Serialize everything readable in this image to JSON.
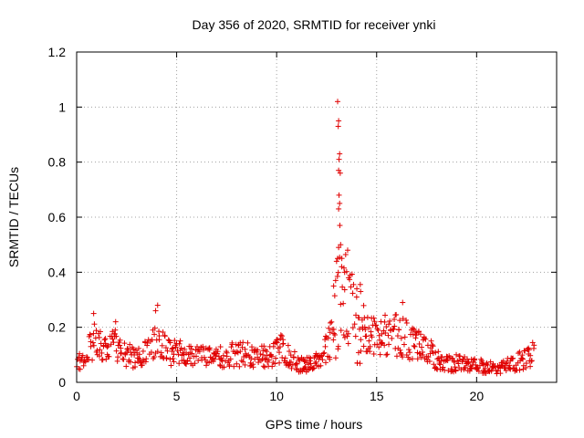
{
  "chart_data": {
    "type": "scatter",
    "title": "Day 356 of 2020, SRMTID for receiver ynki",
    "xlabel": "GPS time / hours",
    "ylabel": "SRMTID / TECUs",
    "xlim": [
      0,
      24
    ],
    "ylim": [
      0,
      1.2
    ],
    "xticks": [
      0,
      5,
      10,
      15,
      20
    ],
    "yticks": [
      0,
      0.2,
      0.4,
      0.6,
      0.8,
      1.0,
      1.2
    ],
    "ytick_labels": [
      "0",
      "0.2",
      "0.4",
      "0.6",
      "0.8",
      "1",
      "1.2"
    ],
    "grid": true,
    "marker": "+",
    "color": "#e00000",
    "series": [
      {
        "name": "SRMTID",
        "envelope": [
          {
            "x": 0.0,
            "y": 0.07
          },
          {
            "x": 0.5,
            "y": 0.09
          },
          {
            "x": 0.9,
            "y": 0.17
          },
          {
            "x": 1.3,
            "y": 0.11
          },
          {
            "x": 2.0,
            "y": 0.14
          },
          {
            "x": 2.5,
            "y": 0.1
          },
          {
            "x": 3.2,
            "y": 0.09
          },
          {
            "x": 4.0,
            "y": 0.16
          },
          {
            "x": 4.5,
            "y": 0.11
          },
          {
            "x": 5.5,
            "y": 0.11
          },
          {
            "x": 6.5,
            "y": 0.09
          },
          {
            "x": 7.5,
            "y": 0.1
          },
          {
            "x": 8.5,
            "y": 0.1
          },
          {
            "x": 9.5,
            "y": 0.09
          },
          {
            "x": 10.2,
            "y": 0.12
          },
          {
            "x": 11.0,
            "y": 0.07
          },
          {
            "x": 11.8,
            "y": 0.06
          },
          {
            "x": 12.3,
            "y": 0.1
          },
          {
            "x": 12.7,
            "y": 0.16
          },
          {
            "x": 13.0,
            "y": 0.28
          },
          {
            "x": 13.3,
            "y": 0.3
          },
          {
            "x": 13.7,
            "y": 0.25
          },
          {
            "x": 14.2,
            "y": 0.22
          },
          {
            "x": 14.8,
            "y": 0.16
          },
          {
            "x": 15.5,
            "y": 0.18
          },
          {
            "x": 16.2,
            "y": 0.17
          },
          {
            "x": 16.8,
            "y": 0.14
          },
          {
            "x": 17.5,
            "y": 0.12
          },
          {
            "x": 18.2,
            "y": 0.07
          },
          {
            "x": 19.0,
            "y": 0.07
          },
          {
            "x": 20.0,
            "y": 0.06
          },
          {
            "x": 21.0,
            "y": 0.05
          },
          {
            "x": 22.0,
            "y": 0.07
          },
          {
            "x": 22.9,
            "y": 0.11
          }
        ],
        "peak_points": [
          {
            "x": 13.05,
            "y": 1.02
          },
          {
            "x": 13.1,
            "y": 0.95
          },
          {
            "x": 13.08,
            "y": 0.93
          },
          {
            "x": 13.15,
            "y": 0.83
          },
          {
            "x": 13.12,
            "y": 0.81
          },
          {
            "x": 13.1,
            "y": 0.77
          },
          {
            "x": 13.18,
            "y": 0.76
          },
          {
            "x": 13.12,
            "y": 0.68
          },
          {
            "x": 13.15,
            "y": 0.65
          },
          {
            "x": 13.1,
            "y": 0.63
          },
          {
            "x": 13.16,
            "y": 0.57
          },
          {
            "x": 13.2,
            "y": 0.5
          },
          {
            "x": 13.1,
            "y": 0.49
          },
          {
            "x": 13.05,
            "y": 0.45
          },
          {
            "x": 13.55,
            "y": 0.48
          },
          {
            "x": 13.25,
            "y": 0.42
          },
          {
            "x": 13.4,
            "y": 0.4
          },
          {
            "x": 13.6,
            "y": 0.38
          },
          {
            "x": 12.95,
            "y": 0.37
          },
          {
            "x": 12.85,
            "y": 0.35
          },
          {
            "x": 4.05,
            "y": 0.28
          },
          {
            "x": 3.95,
            "y": 0.26
          },
          {
            "x": 0.85,
            "y": 0.25
          },
          {
            "x": 1.95,
            "y": 0.22
          },
          {
            "x": 16.3,
            "y": 0.29
          },
          {
            "x": 14.2,
            "y": 0.33
          },
          {
            "x": 14.0,
            "y": 0.31
          }
        ]
      }
    ]
  }
}
